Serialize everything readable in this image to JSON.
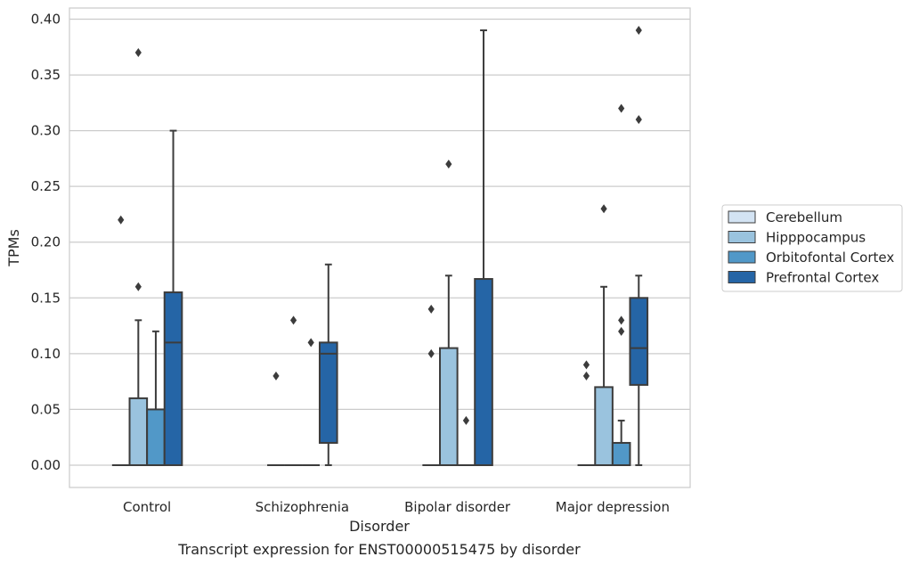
{
  "chart_data": {
    "type": "box",
    "title": "",
    "caption": "Transcript expression for ENST00000515475 by disorder",
    "xlabel": "Disorder",
    "ylabel": "TPMs",
    "ylim": [
      -0.02,
      0.41
    ],
    "yticks": [
      "0.00",
      "0.05",
      "0.10",
      "0.15",
      "0.20",
      "0.25",
      "0.30",
      "0.35",
      "0.40"
    ],
    "grid": "horizontal",
    "legend_position": "right",
    "categories": [
      "Control",
      "Schizophrenia",
      "Bipolar disorder",
      "Major depression"
    ],
    "series": [
      {
        "name": "Cerebellum",
        "color": "#d3e3f3",
        "boxes": [
          {
            "q1": 0,
            "median": 0,
            "q3": 0,
            "whisker_low": 0,
            "whisker_high": 0,
            "outliers": [
              0.22
            ]
          },
          {
            "q1": 0,
            "median": 0,
            "q3": 0,
            "whisker_low": 0,
            "whisker_high": 0,
            "outliers": [
              0.08
            ]
          },
          {
            "q1": 0,
            "median": 0,
            "q3": 0,
            "whisker_low": 0,
            "whisker_high": 0,
            "outliers": [
              0.1,
              0.14
            ]
          },
          {
            "q1": 0,
            "median": 0,
            "q3": 0,
            "whisker_low": 0,
            "whisker_high": 0,
            "outliers": [
              0.08,
              0.09
            ]
          }
        ]
      },
      {
        "name": "Hipppocampus",
        "color": "#9ac3de",
        "boxes": [
          {
            "q1": 0,
            "median": 0,
            "q3": 0.06,
            "whisker_low": 0,
            "whisker_high": 0.13,
            "outliers": [
              0.16,
              0.37
            ]
          },
          {
            "q1": 0,
            "median": 0,
            "q3": 0,
            "whisker_low": 0,
            "whisker_high": 0,
            "outliers": [
              0.13
            ]
          },
          {
            "q1": 0,
            "median": 0,
            "q3": 0.105,
            "whisker_low": 0,
            "whisker_high": 0.17,
            "outliers": [
              0.27
            ]
          },
          {
            "q1": 0,
            "median": 0,
            "q3": 0.07,
            "whisker_low": 0,
            "whisker_high": 0.16,
            "outliers": [
              0.23
            ]
          }
        ]
      },
      {
        "name": "Orbitofontal Cortex",
        "color": "#5198c8",
        "boxes": [
          {
            "q1": 0,
            "median": 0,
            "q3": 0.05,
            "whisker_low": 0,
            "whisker_high": 0.12,
            "outliers": []
          },
          {
            "q1": 0,
            "median": 0,
            "q3": 0,
            "whisker_low": 0,
            "whisker_high": 0,
            "outliers": [
              0.11
            ]
          },
          {
            "q1": 0,
            "median": 0,
            "q3": 0,
            "whisker_low": 0,
            "whisker_high": 0,
            "outliers": [
              0.04
            ]
          },
          {
            "q1": 0,
            "median": 0,
            "q3": 0.02,
            "whisker_low": 0,
            "whisker_high": 0.04,
            "outliers": [
              0.12,
              0.13,
              0.32
            ]
          }
        ]
      },
      {
        "name": "Prefrontal Cortex",
        "color": "#2565a6",
        "boxes": [
          {
            "q1": 0,
            "median": 0.11,
            "q3": 0.155,
            "whisker_low": 0,
            "whisker_high": 0.3,
            "outliers": []
          },
          {
            "q1": 0.02,
            "median": 0.1,
            "q3": 0.11,
            "whisker_low": 0,
            "whisker_high": 0.18,
            "outliers": []
          },
          {
            "q1": 0,
            "median": 0,
            "q3": 0.167,
            "whisker_low": 0,
            "whisker_high": 0.39,
            "outliers": []
          },
          {
            "q1": 0.072,
            "median": 0.105,
            "q3": 0.15,
            "whisker_low": 0,
            "whisker_high": 0.17,
            "outliers": [
              0.31,
              0.39
            ]
          }
        ]
      }
    ]
  }
}
